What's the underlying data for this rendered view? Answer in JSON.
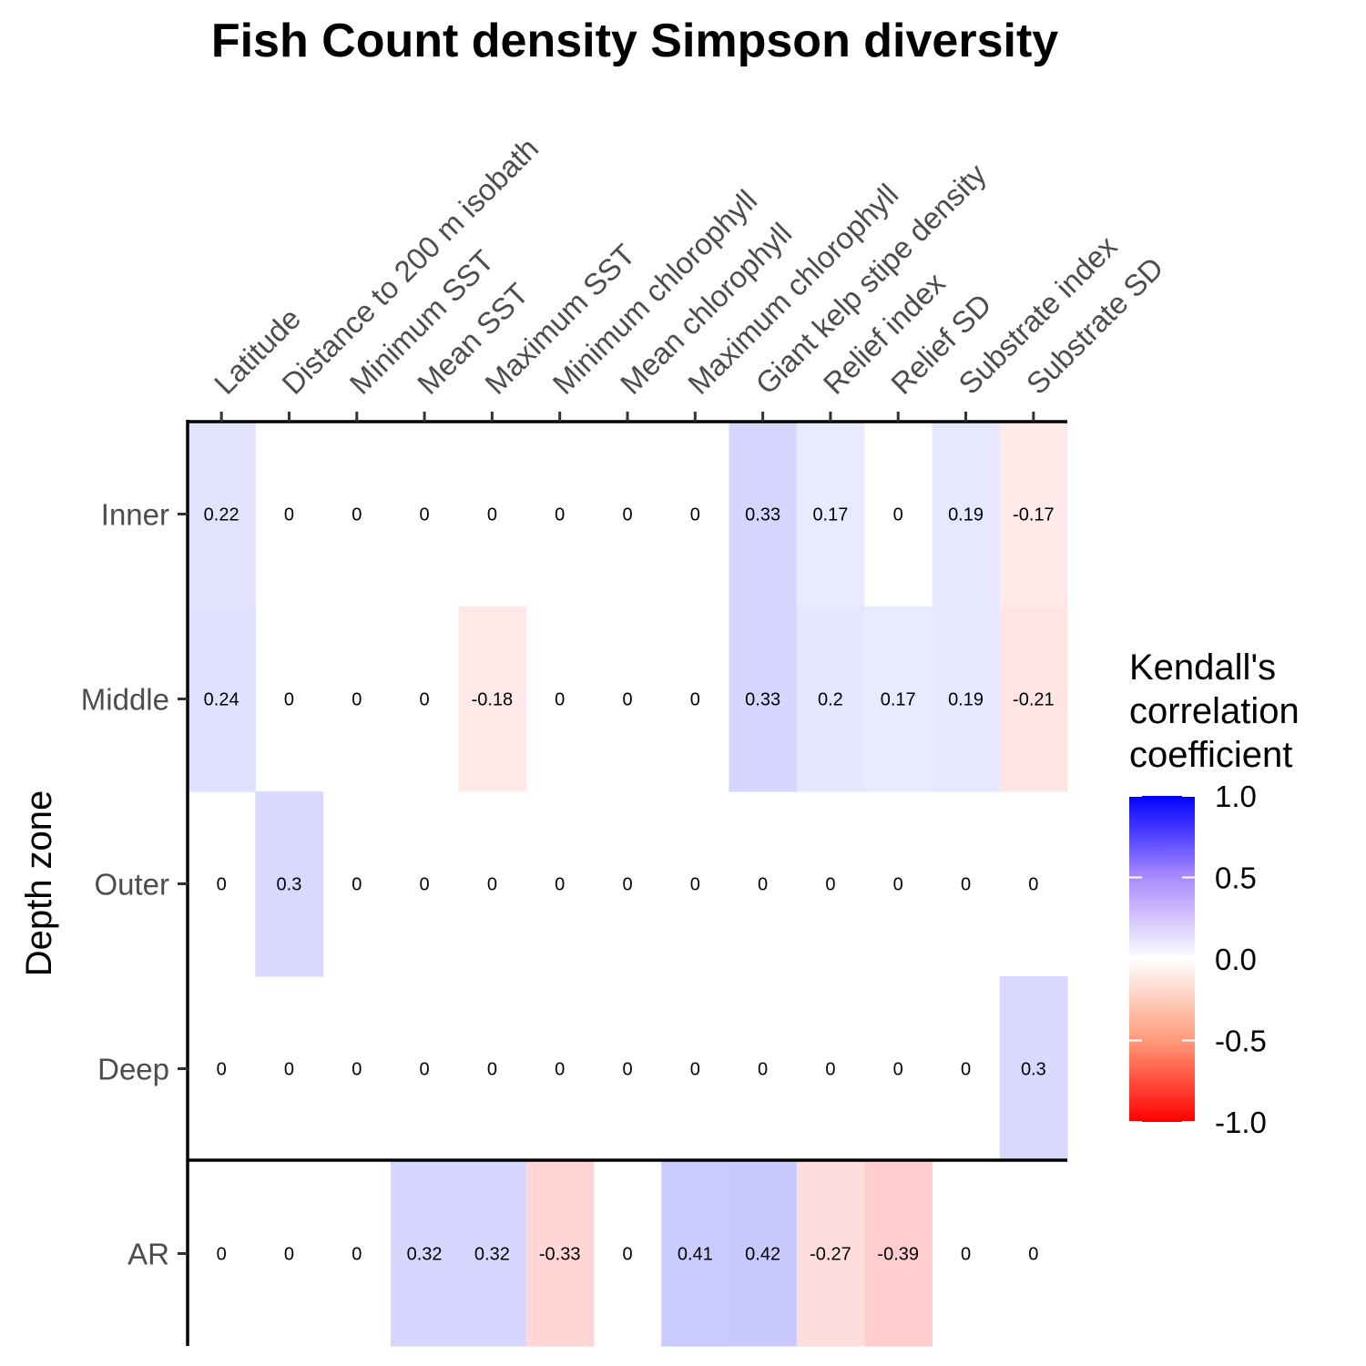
{
  "chart_data": {
    "type": "heatmap",
    "title": "Fish Count density Simpson diversity",
    "xlabel": "",
    "ylabel": "Depth zone",
    "x_categories": [
      "Latitude",
      "Distance to 200 m isobath",
      "Minimum SST",
      "Mean SST",
      "Maximum SST",
      "Minimum chlorophyll",
      "Mean chlorophyll",
      "Maximum chlorophyll",
      "Giant kelp stipe density",
      "Relief index",
      "Relief SD",
      "Substrate index",
      "Substrate SD"
    ],
    "y_categories": [
      "Inner",
      "Middle",
      "Outer",
      "Deep",
      "AR"
    ],
    "values": [
      [
        0.22,
        0,
        0,
        0,
        0,
        0,
        0,
        0,
        0.33,
        0.17,
        0,
        0.19,
        -0.17
      ],
      [
        0.24,
        0,
        0,
        0,
        -0.18,
        0,
        0,
        0,
        0.33,
        0.2,
        0.17,
        0.19,
        -0.21
      ],
      [
        0,
        0.3,
        0,
        0,
        0,
        0,
        0,
        0,
        0,
        0,
        0,
        0,
        0
      ],
      [
        0,
        0,
        0,
        0,
        0,
        0,
        0,
        0,
        0,
        0,
        0,
        0,
        0.3
      ],
      [
        0,
        0,
        0,
        0.32,
        0.32,
        -0.33,
        0,
        0.41,
        0.42,
        -0.27,
        -0.39,
        0,
        0
      ]
    ],
    "x_axis_position": "top",
    "legend": {
      "title": [
        "Kendall's",
        "correlation",
        "coefficient"
      ],
      "limits": [
        -1,
        1
      ],
      "ticks": [
        "1.0",
        "0.5",
        "0.0",
        "-0.5",
        "-1.0"
      ],
      "low_color": "#ff0000",
      "mid_color": "#ffffff",
      "high_color": "#0000ff",
      "placement": "right"
    },
    "separator_after_row": "Deep",
    "grid": false
  }
}
